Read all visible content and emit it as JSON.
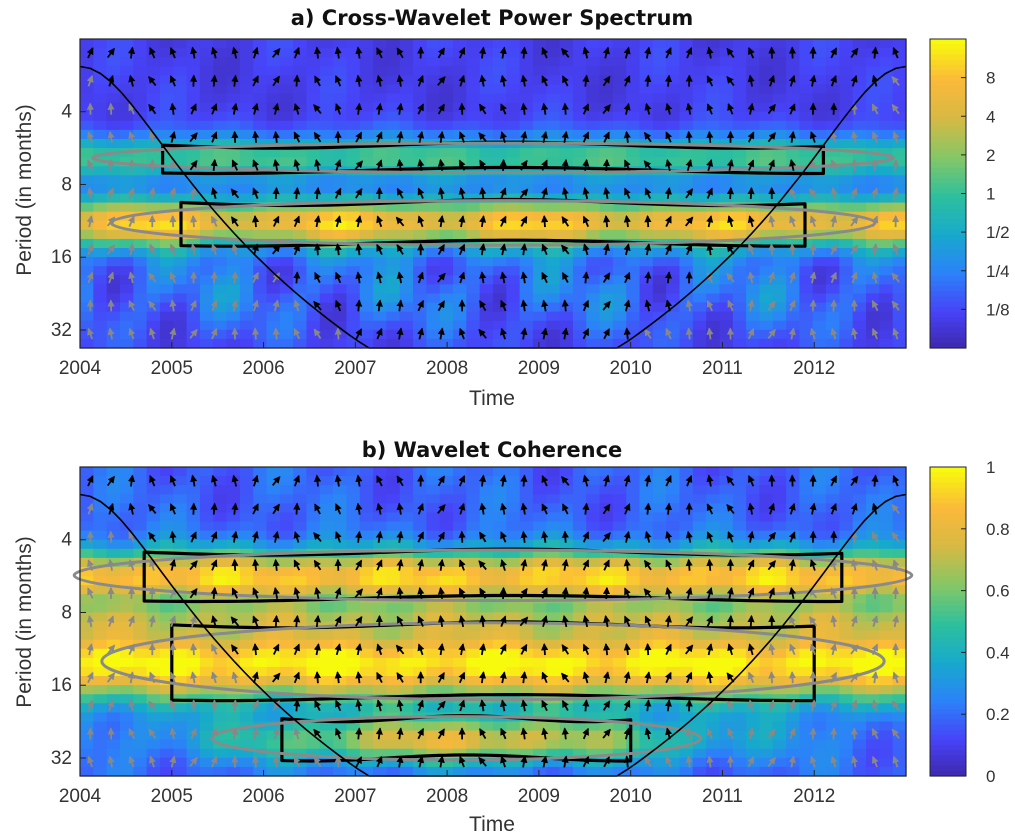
{
  "chart_data": [
    {
      "type": "heatmap",
      "title": "a) Cross-Wavelet Power Spectrum",
      "xlabel": "Time",
      "ylabel": "Period (in months)",
      "x_ticks": [
        "2004",
        "2005",
        "2006",
        "2007",
        "2008",
        "2009",
        "2010",
        "2011",
        "2012"
      ],
      "xlim": [
        2004,
        2013
      ],
      "y_ticks": [
        "4",
        "8",
        "16",
        "32"
      ],
      "ylim": [
        2,
        38
      ],
      "y_scale": "log2 (period increasing downward)",
      "colorbar": {
        "ticks": [
          "8",
          "4",
          "2",
          "1",
          "1/2",
          "1/4",
          "1/8"
        ],
        "range": [
          0.0625,
          16
        ],
        "scale": "log2"
      },
      "colormap": [
        "#3e26a8",
        "#4743f8",
        "#2c82f9",
        "#17a9cc",
        "#2ec09c",
        "#85c766",
        "#d6b944",
        "#fbb93a",
        "#f8fa0d"
      ],
      "features": [
        {
          "name": "high power band",
          "period_range": [
            9.5,
            14
          ],
          "time_range": [
            2005.1,
            2011.9
          ],
          "level": "~4–8"
        },
        {
          "name": "moderate power band",
          "period_range": [
            5.5,
            7
          ],
          "time_range": [
            2004.9,
            2012.1
          ],
          "level": "~1–2"
        },
        {
          "name": "low power",
          "period_range": [
            2,
            4.5
          ],
          "level": "<1/8"
        }
      ],
      "significance_contours": true,
      "cone_of_influence": true,
      "phase_arrows": true
    },
    {
      "type": "heatmap",
      "title": "b) Wavelet Coherence",
      "xlabel": "Time",
      "ylabel": "Period (in months)",
      "x_ticks": [
        "2004",
        "2005",
        "2006",
        "2007",
        "2008",
        "2009",
        "2010",
        "2011",
        "2012"
      ],
      "xlim": [
        2004,
        2013
      ],
      "y_ticks": [
        "4",
        "8",
        "16",
        "32"
      ],
      "ylim": [
        2,
        38
      ],
      "y_scale": "log2 (period increasing downward)",
      "colorbar": {
        "ticks": [
          "1",
          "0.8",
          "0.6",
          "0.4",
          "0.2",
          "0"
        ],
        "range": [
          0,
          1
        ],
        "scale": "linear"
      },
      "colormap": [
        "#3e26a8",
        "#4743f8",
        "#2c82f9",
        "#17a9cc",
        "#2ec09c",
        "#85c766",
        "#d6b944",
        "#fbb93a",
        "#f8fa0d"
      ],
      "features": [
        {
          "name": "coherent band",
          "period_range": [
            4.5,
            7
          ],
          "time_range": [
            2004.7,
            2012.3
          ],
          "level": "~0.8–0.9"
        },
        {
          "name": "coherent band",
          "period_range": [
            9,
            18
          ],
          "time_range": [
            2005,
            2012
          ],
          "level": "~0.9–1"
        },
        {
          "name": "coherent band",
          "period_range": [
            22,
            32
          ],
          "time_range": [
            2006.2,
            2010
          ],
          "level": "~0.8"
        },
        {
          "name": "low coherence",
          "period_range": [
            2,
            3.5
          ],
          "level": "~0.1–0.3"
        }
      ],
      "significance_contours": true,
      "cone_of_influence": true,
      "phase_arrows": true
    }
  ]
}
